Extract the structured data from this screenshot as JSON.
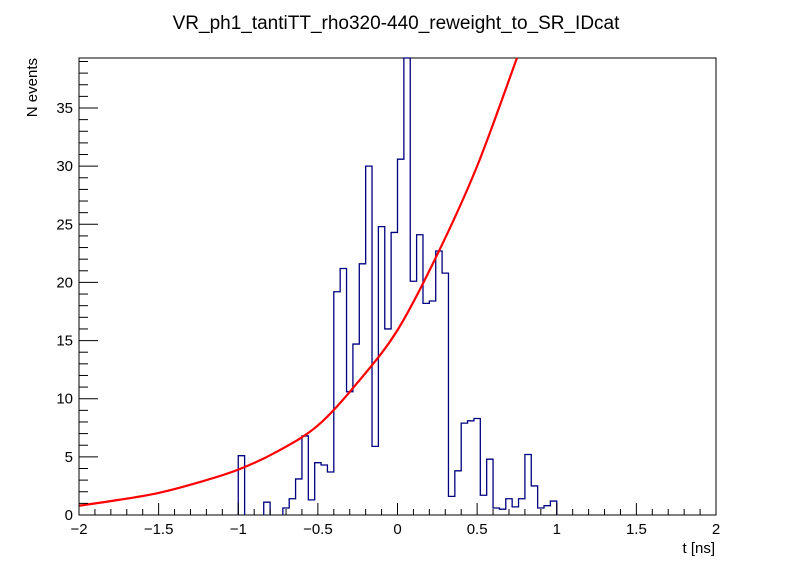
{
  "chart_data": {
    "type": "histogram",
    "title": "VR_ph1_tantiTT_rho320-440_reweight_to_SR_IDcat",
    "xlabel": "t [ns]",
    "ylabel": "N events",
    "xlim": [
      -2,
      2
    ],
    "ylim": [
      0,
      39.3
    ],
    "x_ticks": [
      {
        "value": -2,
        "label": "−2"
      },
      {
        "value": -1.5,
        "label": "−1.5"
      },
      {
        "value": -1,
        "label": "−1"
      },
      {
        "value": -0.5,
        "label": "−0.5"
      },
      {
        "value": 0,
        "label": "0"
      },
      {
        "value": 0.5,
        "label": "0.5"
      },
      {
        "value": 1,
        "label": "1"
      },
      {
        "value": 1.5,
        "label": "1.5"
      },
      {
        "value": 2,
        "label": "2"
      }
    ],
    "y_ticks": [
      {
        "value": 0,
        "label": "0"
      },
      {
        "value": 5,
        "label": "5"
      },
      {
        "value": 10,
        "label": "10"
      },
      {
        "value": 15,
        "label": "15"
      },
      {
        "value": 20,
        "label": "20"
      },
      {
        "value": 25,
        "label": "25"
      },
      {
        "value": 30,
        "label": "30"
      },
      {
        "value": 35,
        "label": "35"
      }
    ],
    "series": [
      {
        "name": "histogram",
        "color": "#000080",
        "bin_width": 0.04,
        "bins": [
          {
            "x": -1.0,
            "y": 5.1
          },
          {
            "x": -0.84,
            "y": 1.1
          },
          {
            "x": -0.72,
            "y": 0.6
          },
          {
            "x": -0.68,
            "y": 1.4
          },
          {
            "x": -0.64,
            "y": 3.1
          },
          {
            "x": -0.6,
            "y": 6.8
          },
          {
            "x": -0.56,
            "y": 1.3
          },
          {
            "x": -0.52,
            "y": 4.5
          },
          {
            "x": -0.48,
            "y": 4.3
          },
          {
            "x": -0.44,
            "y": 3.7
          },
          {
            "x": -0.4,
            "y": 19.2
          },
          {
            "x": -0.36,
            "y": 21.2
          },
          {
            "x": -0.32,
            "y": 10.6
          },
          {
            "x": -0.28,
            "y": 14.7
          },
          {
            "x": -0.24,
            "y": 21.6
          },
          {
            "x": -0.2,
            "y": 30.0
          },
          {
            "x": -0.16,
            "y": 5.9
          },
          {
            "x": -0.12,
            "y": 24.8
          },
          {
            "x": -0.08,
            "y": 16.0
          },
          {
            "x": -0.04,
            "y": 24.3
          },
          {
            "x": 0.0,
            "y": 30.6
          },
          {
            "x": 0.04,
            "y": 39.3
          },
          {
            "x": 0.08,
            "y": 20.1
          },
          {
            "x": 0.12,
            "y": 24.1
          },
          {
            "x": 0.16,
            "y": 18.2
          },
          {
            "x": 0.2,
            "y": 18.4
          },
          {
            "x": 0.24,
            "y": 22.7
          },
          {
            "x": 0.28,
            "y": 20.8
          },
          {
            "x": 0.32,
            "y": 1.6
          },
          {
            "x": 0.36,
            "y": 3.8
          },
          {
            "x": 0.4,
            "y": 7.9
          },
          {
            "x": 0.44,
            "y": 8.1
          },
          {
            "x": 0.48,
            "y": 8.3
          },
          {
            "x": 0.52,
            "y": 1.7
          },
          {
            "x": 0.56,
            "y": 4.8
          },
          {
            "x": 0.6,
            "y": 0.6
          },
          {
            "x": 0.64,
            "y": 0.5
          },
          {
            "x": 0.68,
            "y": 1.4
          },
          {
            "x": 0.72,
            "y": 0.7
          },
          {
            "x": 0.76,
            "y": 1.4
          },
          {
            "x": 0.8,
            "y": 5.2
          },
          {
            "x": 0.84,
            "y": 2.5
          },
          {
            "x": 0.88,
            "y": 0.6
          },
          {
            "x": 0.92,
            "y": 0.8
          },
          {
            "x": 0.96,
            "y": 1.2
          }
        ]
      },
      {
        "name": "fit",
        "type": "line",
        "color": "#ff0000",
        "points": [
          {
            "x": -2.0,
            "y": 0.8
          },
          {
            "x": -1.75,
            "y": 1.3
          },
          {
            "x": -1.5,
            "y": 1.9
          },
          {
            "x": -1.25,
            "y": 2.8
          },
          {
            "x": -1.0,
            "y": 3.9
          },
          {
            "x": -0.75,
            "y": 5.5
          },
          {
            "x": -0.5,
            "y": 7.7
          },
          {
            "x": -0.25,
            "y": 11.4
          },
          {
            "x": 0.0,
            "y": 15.9
          },
          {
            "x": 0.25,
            "y": 22.4
          },
          {
            "x": 0.5,
            "y": 30.0
          },
          {
            "x": 0.75,
            "y": 39.3
          }
        ]
      }
    ]
  }
}
